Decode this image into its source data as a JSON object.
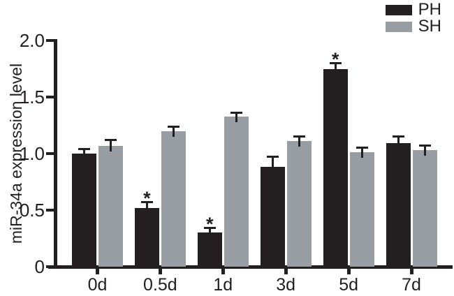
{
  "figure": {
    "background_color": "#ffffff",
    "text_color": "#231f20"
  },
  "legend": {
    "position": "top-right",
    "entries": [
      {
        "label": "PH",
        "color": "#231f20"
      },
      {
        "label": "SH",
        "color": "#999da4"
      }
    ]
  },
  "chart_data": {
    "type": "bar",
    "title": "",
    "xlabel": "",
    "ylabel": "miR-34a expression level",
    "categories": [
      "0d",
      "0.5d",
      "1d",
      "3d",
      "5d",
      "7d"
    ],
    "series": [
      {
        "name": "PH",
        "color": "#231f20",
        "values": [
          1.0,
          0.52,
          0.3,
          0.88,
          1.75,
          1.09
        ],
        "errors": [
          0.05,
          0.06,
          0.05,
          0.1,
          0.06,
          0.07
        ],
        "significance": [
          "",
          "*",
          "*",
          "",
          "*",
          ""
        ]
      },
      {
        "name": "SH",
        "color": "#999da4",
        "values": [
          1.07,
          1.2,
          1.33,
          1.11,
          1.01,
          1.03
        ],
        "errors": [
          0.06,
          0.05,
          0.04,
          0.05,
          0.05,
          0.05
        ],
        "significance": [
          "",
          "",
          "",
          "",
          "",
          ""
        ]
      }
    ],
    "ylim": [
      0,
      2.0
    ],
    "yticks": [
      0,
      0.5,
      1.0,
      1.5,
      2.0
    ],
    "ytick_labels": [
      "0",
      "0.5",
      "1.0",
      "1.5",
      "2.0"
    ],
    "grid": false,
    "error_bars": true,
    "legend_position": "top-right"
  }
}
